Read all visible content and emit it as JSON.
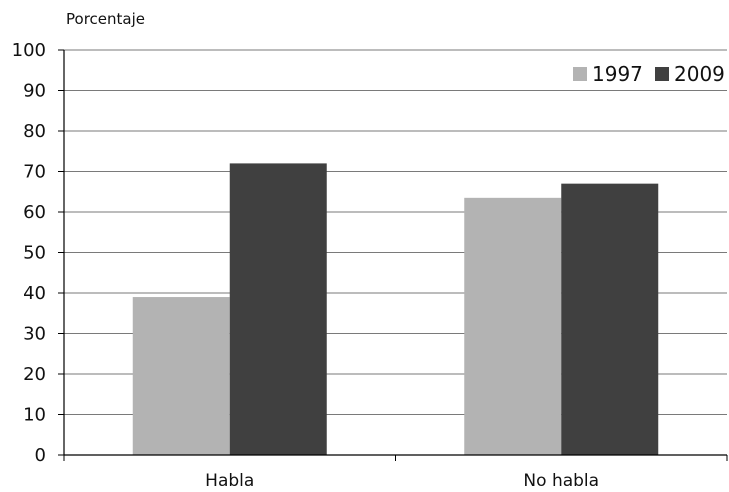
{
  "chart_data": {
    "type": "bar",
    "title": "",
    "ylabel": "Porcentaje",
    "xlabel": "",
    "categories": [
      "Habla",
      "No habla"
    ],
    "series": [
      {
        "name": "1997",
        "values": [
          39,
          63.5
        ],
        "color": "#b3b3b3"
      },
      {
        "name": "2009",
        "values": [
          72,
          67
        ],
        "color": "#404040"
      }
    ],
    "ylim": [
      0,
      100
    ],
    "yticks": [
      "0",
      "10",
      "20",
      "30",
      "40",
      "50",
      "60",
      "70",
      "80",
      "90",
      "100"
    ],
    "grid": true,
    "legend_position": "top-right"
  }
}
